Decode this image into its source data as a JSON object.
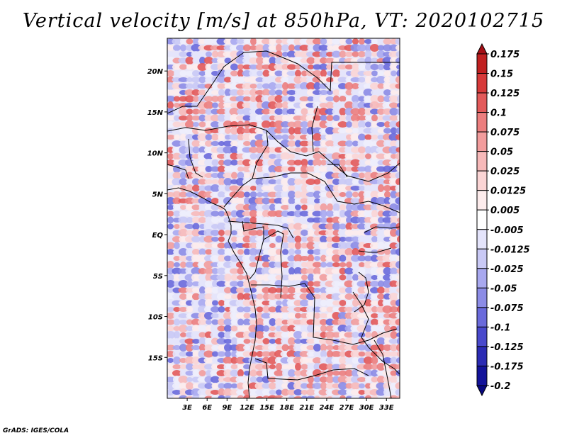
{
  "title": "Vertical velocity [m/s] at 850hPa, VT: 2020102715",
  "credit": "GrADS: IGES/COLA",
  "map": {
    "lon_range": [
      0,
      35
    ],
    "lat_range": [
      -20,
      24
    ],
    "lat_ticks": [
      {
        "lat": 20,
        "label": "20N"
      },
      {
        "lat": 15,
        "label": "15N"
      },
      {
        "lat": 10,
        "label": "10N"
      },
      {
        "lat": 5,
        "label": "5N"
      },
      {
        "lat": 0,
        "label": "EQ"
      },
      {
        "lat": -5,
        "label": "5S"
      },
      {
        "lat": -10,
        "label": "10S"
      },
      {
        "lat": -15,
        "label": "15S"
      }
    ],
    "lon_ticks": [
      {
        "lon": 3,
        "label": "3E"
      },
      {
        "lon": 6,
        "label": "6E"
      },
      {
        "lon": 9,
        "label": "9E"
      },
      {
        "lon": 12,
        "label": "12E"
      },
      {
        "lon": 15,
        "label": "15E"
      },
      {
        "lon": 18,
        "label": "18E"
      },
      {
        "lon": 21,
        "label": "21E"
      },
      {
        "lon": 24,
        "label": "24E"
      },
      {
        "lon": 27,
        "label": "27E"
      },
      {
        "lon": 30,
        "label": "30E"
      },
      {
        "lon": 33,
        "label": "33E"
      }
    ]
  },
  "colorbar": {
    "unit": "m/s",
    "labels": [
      "0.175",
      "0.15",
      "0.125",
      "0.1",
      "0.075",
      "0.05",
      "0.025",
      "0.0125",
      "0.005",
      "-0.005",
      "-0.0125",
      "-0.025",
      "-0.05",
      "-0.075",
      "-0.1",
      "-0.125",
      "-0.175",
      "-0.2"
    ],
    "colors": [
      "#a50f15",
      "#c02020",
      "#d73a3a",
      "#e35a5a",
      "#ec7e7e",
      "#f29c9c",
      "#f7b9b9",
      "#fbd5d5",
      "#fdecec",
      "#ffffff",
      "#e4e4fb",
      "#c9c9f5",
      "#a8a8ef",
      "#8c8ce6",
      "#6a6adb",
      "#4949cc",
      "#2b2bb4",
      "#13139a",
      "#080880"
    ]
  }
}
